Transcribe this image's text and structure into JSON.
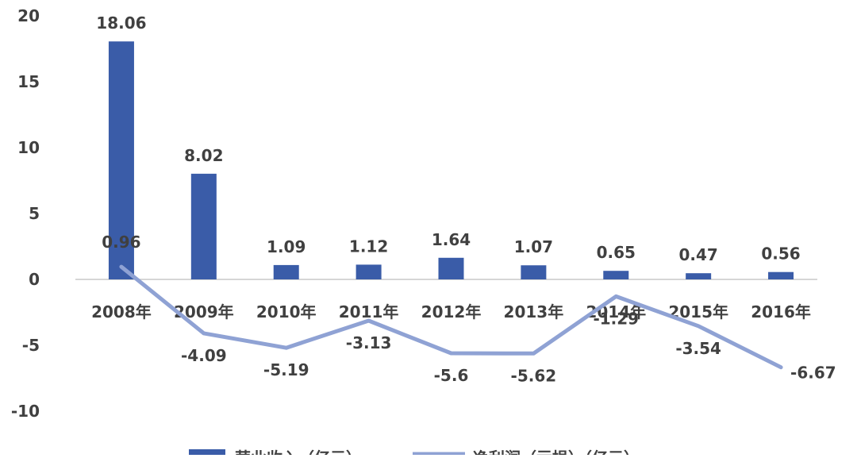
{
  "chart_data": {
    "type": "bar",
    "categories": [
      "2008年",
      "2009年",
      "2010年",
      "2011年",
      "2012年",
      "2013年",
      "2014年",
      "2015年",
      "2016年"
    ],
    "series": [
      {
        "name": "营业收入（亿元）",
        "type": "bar",
        "values": [
          18.06,
          8.02,
          1.09,
          1.12,
          1.64,
          1.07,
          0.65,
          0.47,
          0.56
        ],
        "labels": [
          "18.06",
          "8.02",
          "1.09",
          "1.12",
          "1.64",
          "1.07",
          "0.65",
          "0.47",
          "0.56"
        ],
        "color": "#3a5ca8"
      },
      {
        "name": "净利润（亏损）（亿元）",
        "type": "line",
        "values": [
          0.96,
          -4.09,
          -5.19,
          -3.13,
          -5.6,
          -5.62,
          -1.29,
          -3.54,
          -6.67
        ],
        "labels": [
          "0.96",
          "-4.09",
          "-5.19",
          "-3.13",
          "-5.6",
          "-5.62",
          "-1.29",
          "-3.54",
          "-6.67"
        ],
        "color": "#8fa2d4"
      }
    ],
    "yticks": [
      "20",
      "15",
      "10",
      "5",
      "0",
      "-5",
      "-10"
    ],
    "ylim": [
      -10,
      20
    ],
    "grid": false,
    "legend": "bottom"
  }
}
